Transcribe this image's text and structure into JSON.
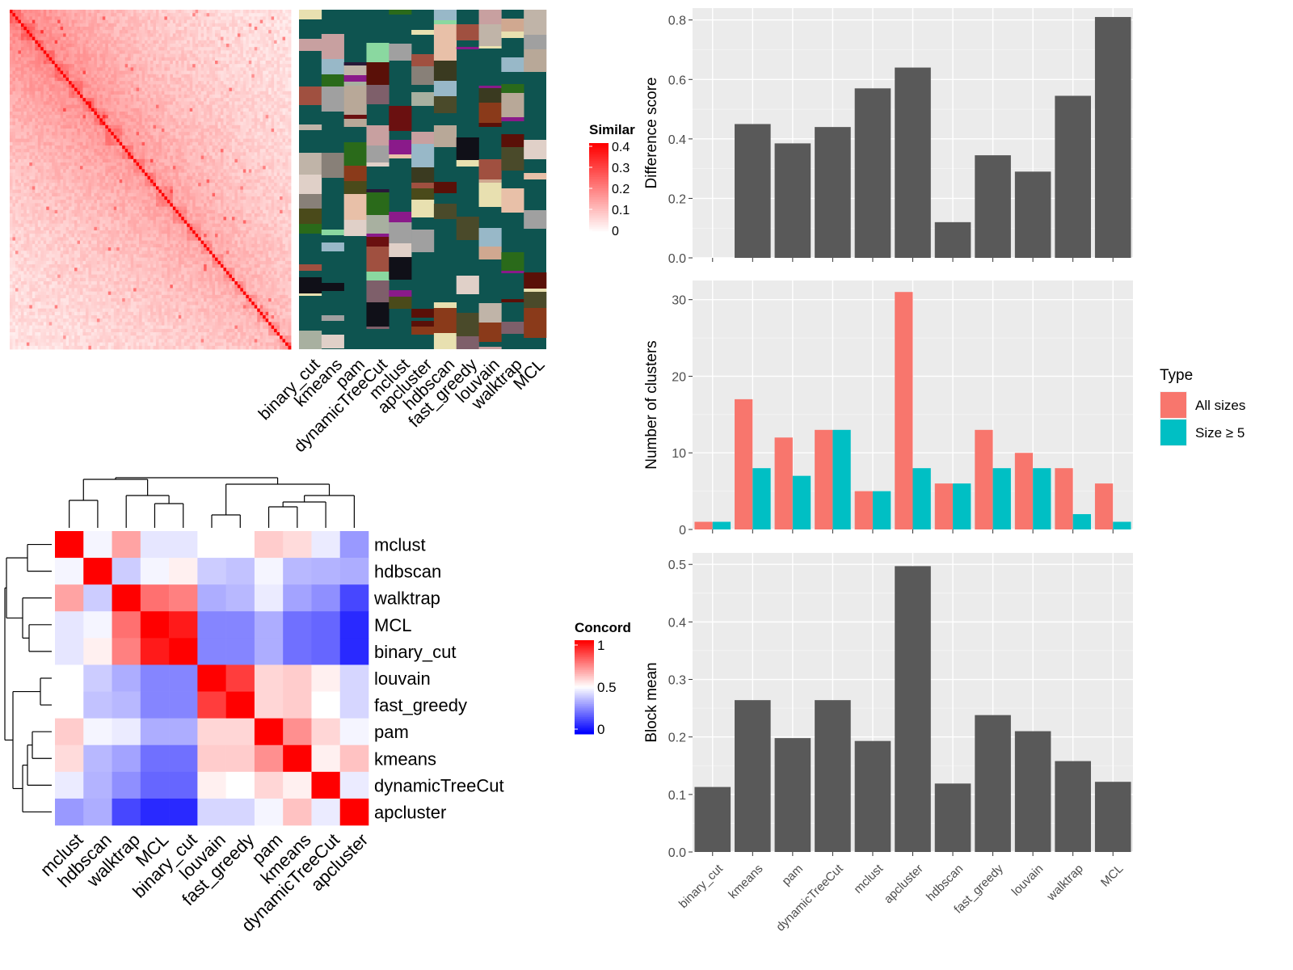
{
  "colors": {
    "panel_bg": "#ebebeb",
    "grid_major": "#ffffff",
    "bar_gray": "#595959",
    "all_sizes": "#f8766d",
    "size_ge5": "#00bfc4",
    "heat_low": "#ffffff",
    "heat_high": "#ff0000",
    "conc_low": "#0000ff",
    "conc_mid": "#ffffff",
    "conc_high": "#ff0000",
    "cluster_bg": "#0e5450",
    "axis_text": "#4d4d4d"
  },
  "chart_data": [
    {
      "type": "heatmap",
      "title": "",
      "legend_title": "Similar",
      "legend_ticks": [
        "0.4",
        "0.3",
        "0.2",
        "0.1",
        "0"
      ],
      "scale": [
        0,
        0.4
      ],
      "n_cells": 100
    },
    {
      "type": "heatmap",
      "title": "",
      "columns": [
        "binary_cut",
        "kmeans",
        "pam",
        "dynamicTreeCut",
        "mclust",
        "apcluster",
        "hdbscan",
        "fast_greedy",
        "louvain",
        "walktrap",
        "MCL"
      ]
    },
    {
      "type": "heatmap",
      "title": "",
      "legend_title": "Concord",
      "legend_ticks": [
        "1",
        "0.5",
        "0"
      ],
      "scale": [
        0,
        1
      ],
      "rows": [
        "mclust",
        "hdbscan",
        "walktrap",
        "MCL",
        "binary_cut",
        "louvain",
        "fast_greedy",
        "pam",
        "kmeans",
        "dynamicTreeCut",
        "apcluster"
      ],
      "columns": [
        "mclust",
        "hdbscan",
        "walktrap",
        "MCL",
        "binary_cut",
        "louvain",
        "fast_greedy",
        "pam",
        "kmeans",
        "dynamicTreeCut",
        "apcluster"
      ],
      "values": [
        [
          1.0,
          0.48,
          0.68,
          0.45,
          0.45,
          0.5,
          0.5,
          0.6,
          0.57,
          0.46,
          0.3
        ],
        [
          0.48,
          1.0,
          0.4,
          0.48,
          0.53,
          0.4,
          0.38,
          0.48,
          0.36,
          0.35,
          0.34
        ],
        [
          0.68,
          0.4,
          1.0,
          0.78,
          0.75,
          0.34,
          0.36,
          0.46,
          0.32,
          0.28,
          0.14
        ],
        [
          0.45,
          0.48,
          0.78,
          1.0,
          0.95,
          0.26,
          0.26,
          0.34,
          0.22,
          0.2,
          0.08
        ],
        [
          0.45,
          0.53,
          0.75,
          0.95,
          1.0,
          0.26,
          0.26,
          0.34,
          0.22,
          0.2,
          0.08
        ],
        [
          0.5,
          0.4,
          0.34,
          0.26,
          0.26,
          1.0,
          0.88,
          0.58,
          0.6,
          0.53,
          0.42
        ],
        [
          0.5,
          0.38,
          0.36,
          0.26,
          0.26,
          0.88,
          1.0,
          0.58,
          0.6,
          0.5,
          0.42
        ],
        [
          0.6,
          0.48,
          0.46,
          0.34,
          0.34,
          0.58,
          0.58,
          1.0,
          0.72,
          0.58,
          0.48
        ],
        [
          0.57,
          0.36,
          0.32,
          0.22,
          0.22,
          0.6,
          0.6,
          0.72,
          1.0,
          0.53,
          0.62
        ],
        [
          0.46,
          0.35,
          0.28,
          0.2,
          0.2,
          0.53,
          0.5,
          0.58,
          0.53,
          1.0,
          0.46
        ],
        [
          0.3,
          0.34,
          0.14,
          0.08,
          0.08,
          0.42,
          0.42,
          0.48,
          0.62,
          0.46,
          1.0
        ]
      ]
    },
    {
      "type": "bar",
      "title": "",
      "categories": [
        "binary_cut",
        "kmeans",
        "pam",
        "dynamicTreeCut",
        "mclust",
        "apcluster",
        "hdbscan",
        "fast_greedy",
        "louvain",
        "walktrap",
        "MCL"
      ],
      "values": [
        0,
        0.45,
        0.385,
        0.44,
        0.57,
        0.64,
        0.12,
        0.345,
        0.29,
        0.545,
        0.81
      ],
      "xlabel": "",
      "ylabel": "Difference score",
      "ylim": [
        0,
        0.84
      ],
      "yticks": [
        "0.0",
        "0.2",
        "0.4",
        "0.6",
        "0.8"
      ],
      "grid": true
    },
    {
      "type": "bar",
      "title": "",
      "categories": [
        "binary_cut",
        "kmeans",
        "pam",
        "dynamicTreeCut",
        "mclust",
        "apcluster",
        "hdbscan",
        "fast_greedy",
        "louvain",
        "walktrap",
        "MCL"
      ],
      "series": [
        {
          "name": "All sizes",
          "values": [
            1,
            17,
            12,
            13,
            5,
            31,
            6,
            13,
            10,
            8,
            6
          ]
        },
        {
          "name": "Size ≥ 5",
          "values": [
            1,
            8,
            7,
            13,
            5,
            8,
            6,
            8,
            8,
            2,
            1
          ]
        }
      ],
      "xlabel": "",
      "ylabel": "Number of clusters",
      "ylim": [
        0,
        32.5
      ],
      "yticks": [
        "0",
        "10",
        "20",
        "30"
      ],
      "legend_title": "Type",
      "legend_position": "right",
      "grid": true
    },
    {
      "type": "bar",
      "title": "",
      "categories": [
        "binary_cut",
        "kmeans",
        "pam",
        "dynamicTreeCut",
        "mclust",
        "apcluster",
        "hdbscan",
        "fast_greedy",
        "louvain",
        "walktrap",
        "MCL"
      ],
      "values": [
        0.113,
        0.264,
        0.198,
        0.264,
        0.193,
        0.497,
        0.119,
        0.238,
        0.21,
        0.158,
        0.122
      ],
      "xlabel": "",
      "ylabel": "Block mean",
      "ylim": [
        0,
        0.52
      ],
      "yticks": [
        "0.0",
        "0.1",
        "0.2",
        "0.3",
        "0.4",
        "0.5"
      ],
      "grid": true
    }
  ]
}
